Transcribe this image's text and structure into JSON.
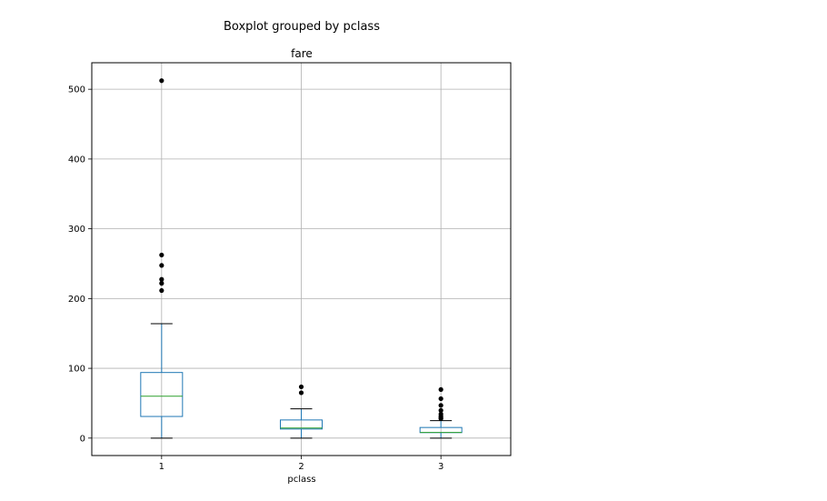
{
  "chart_data": {
    "type": "boxplot",
    "suptitle": "Boxplot grouped by pclass",
    "title": "fare",
    "xlabel": "pclass",
    "ylabel": "",
    "ylim": [
      -25,
      538
    ],
    "yticks": [
      0,
      100,
      200,
      300,
      400,
      500
    ],
    "categories": [
      "1",
      "2",
      "3"
    ],
    "grid": true,
    "legend": "none",
    "colors": {
      "box": "#1f77b4",
      "median": "#2ca02c",
      "whisker": "#000000",
      "flier": "#000000",
      "grid": "#b0b0b0"
    },
    "boxes": [
      {
        "category": "1",
        "whisker_low": 0,
        "q1": 31,
        "median": 60,
        "q3": 94,
        "whisker_high": 164,
        "outliers": [
          211.5,
          221.8,
          227.5,
          247.5,
          262.4,
          512.3
        ]
      },
      {
        "category": "2",
        "whisker_low": 0,
        "q1": 13,
        "median": 14.5,
        "q3": 26,
        "whisker_high": 42,
        "outliers": [
          65,
          73.5
        ]
      },
      {
        "category": "3",
        "whisker_low": 0,
        "q1": 7.9,
        "median": 8.05,
        "q3": 15.2,
        "whisker_high": 25,
        "outliers": [
          27.9,
          29.1,
          31.3,
          34.4,
          39.7,
          46.9,
          56.5,
          69.6
        ]
      }
    ]
  }
}
